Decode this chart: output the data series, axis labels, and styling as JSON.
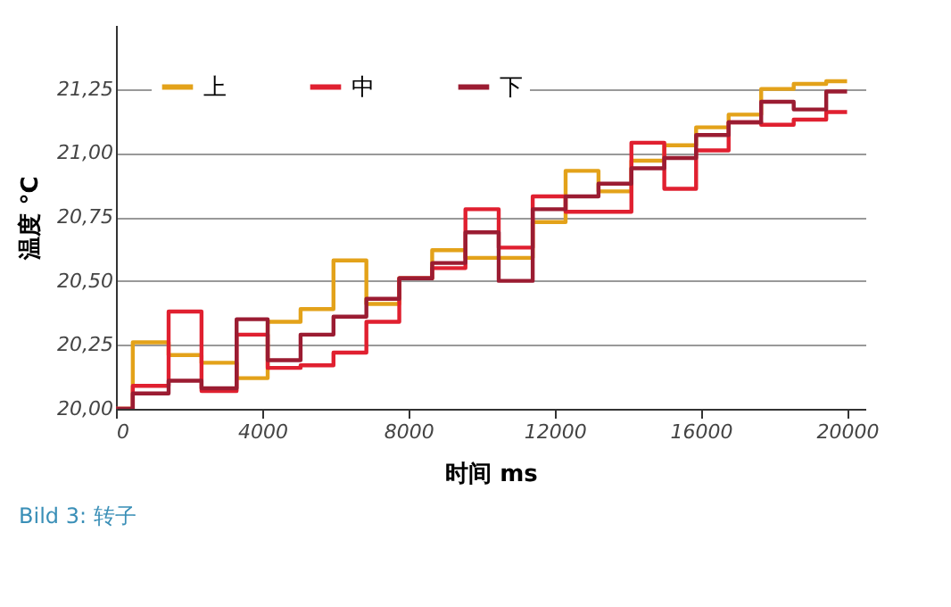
{
  "chart_data": {
    "type": "step",
    "x": [
      0,
      460,
      1440,
      2340,
      3300,
      4150,
      5050,
      5950,
      6850,
      7750,
      8650,
      9560,
      10470,
      11400,
      12300,
      13200,
      14100,
      15000,
      15870,
      16760,
      17650,
      18540,
      19430,
      20000
    ],
    "series": [
      {
        "name": "上",
        "color": "#e3a21a",
        "values": [
          20.0,
          20.26,
          20.21,
          20.18,
          20.12,
          20.34,
          20.39,
          20.58,
          20.41,
          20.51,
          20.62,
          20.59,
          20.59,
          20.73,
          20.93,
          20.85,
          20.97,
          21.03,
          21.1,
          21.15,
          21.25,
          21.27,
          21.28,
          21.28
        ]
      },
      {
        "name": "中",
        "color": "#e02030",
        "values": [
          20.0,
          20.09,
          20.38,
          20.07,
          20.29,
          20.16,
          20.17,
          20.22,
          20.34,
          20.51,
          20.55,
          20.78,
          20.63,
          20.83,
          20.77,
          20.77,
          21.04,
          20.86,
          21.01,
          21.12,
          21.11,
          21.13,
          21.16,
          21.16
        ]
      },
      {
        "name": "下",
        "color": "#9b1c32",
        "values": [
          20.0,
          20.06,
          20.11,
          20.08,
          20.35,
          20.19,
          20.29,
          20.36,
          20.43,
          20.51,
          20.57,
          20.69,
          20.5,
          20.78,
          20.83,
          20.88,
          20.94,
          20.98,
          21.07,
          21.12,
          21.2,
          21.17,
          21.24,
          21.24
        ]
      }
    ],
    "xlabel": "时间 ms",
    "ylabel": "温度 °C",
    "xlim": [
      0,
      20500
    ],
    "xticks": [
      0,
      4000,
      8000,
      12000,
      16000,
      20000
    ],
    "ylim": [
      20,
      21.5
    ],
    "yticks": [
      {
        "value": 20,
        "label": "20,00"
      },
      {
        "value": 20.25,
        "label": "20,25"
      },
      {
        "value": 20.5,
        "label": "20,50"
      },
      {
        "value": 20.75,
        "label": "20,75"
      },
      {
        "value": 21,
        "label": "21,00"
      },
      {
        "value": 21.25,
        "label": "21,25"
      }
    ],
    "grid": "y",
    "legend": "top left",
    "line_style": "solid",
    "annotations": [
      "Bild 3: 转子"
    ]
  }
}
